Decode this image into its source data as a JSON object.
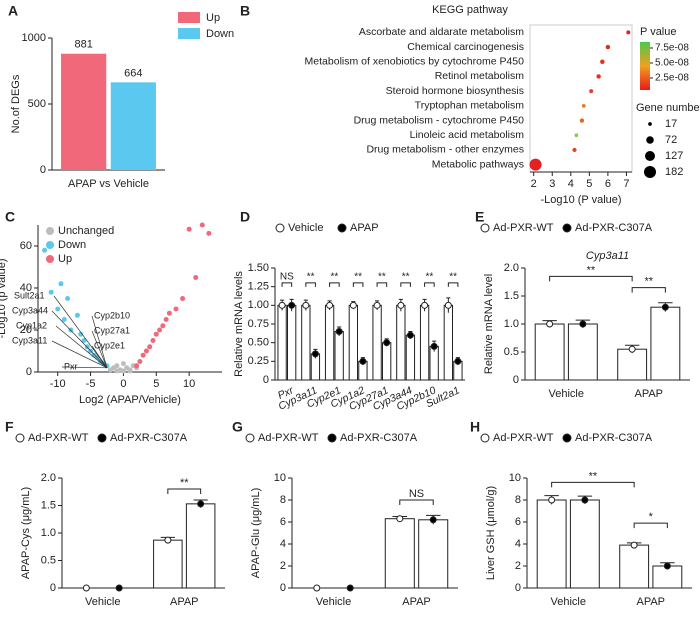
{
  "chart_data": [
    {
      "panel": "A",
      "type": "bar",
      "ylabel": "No.of DEGs",
      "categories": [
        "APAP vs Vehicle"
      ],
      "series": [
        {
          "name": "Up",
          "color": "#f0687a",
          "values": [
            881
          ]
        },
        {
          "name": "Down",
          "color": "#5bc8f0",
          "values": [
            664
          ]
        }
      ],
      "ylim": [
        0,
        1000
      ],
      "yticks": [
        0,
        500,
        1000
      ]
    },
    {
      "panel": "B",
      "type": "dot",
      "title": "KEGG pathway",
      "xlabel": "-Log10 (P value)",
      "categories": [
        "Ascorbate and aldarate metabolism",
        "Chemical carcinogenesis",
        "Metabolism of xenobiotics by cytochrome P450",
        "Retinol metabolism",
        "Steroid hormone biosynthesis",
        "Tryptophan metabolism",
        "Drug metabolism - cytochrome P450",
        "Linoleic acid metabolism",
        "Drug metabolism - other enzymes",
        "Metabolic pathways"
      ],
      "values": [
        7.1,
        6.0,
        5.7,
        5.5,
        5.1,
        4.7,
        4.6,
        4.3,
        4.2,
        2.1
      ],
      "sizes": [
        20,
        25,
        25,
        25,
        20,
        18,
        25,
        17,
        22,
        182
      ],
      "colors": [
        "#e8201a",
        "#e52a1c",
        "#e53020",
        "#e53020",
        "#e84020",
        "#ee7a20",
        "#e56a20",
        "#7ed04a",
        "#e84020",
        "#e52020"
      ],
      "xlim": [
        1.8,
        7.3
      ],
      "xticks": [
        2,
        3,
        4,
        5,
        6,
        7
      ],
      "color_legend": {
        "title": "P value",
        "lim": [
          5e-09,
          8.5e-08
        ],
        "ticks": [
          {
            "value": 7.5e-08,
            "label": "7.5e-08"
          },
          {
            "value": 5e-08,
            "label": "5.0e-08"
          },
          {
            "value": 2.5e-08,
            "label": "2.5e-08"
          }
        ]
      },
      "size_legend": {
        "title": "Gene number",
        "values": [
          17,
          72,
          127,
          182
        ]
      }
    },
    {
      "panel": "C",
      "type": "scatter",
      "xlabel": "Log2 (APAP/Vehicle)",
      "ylabel": "-Log10 (p value)",
      "series": [
        {
          "name": "Unchanged",
          "color": "#bdbdbd",
          "x": [
            -2,
            -1.5,
            -1,
            -0.5,
            0,
            0.5,
            1,
            1.5,
            2,
            -1,
            1,
            0
          ],
          "y": [
            1,
            2,
            3,
            1,
            0.5,
            2,
            1,
            3,
            2,
            0.5,
            0.5,
            4
          ]
        },
        {
          "name": "Down",
          "color": "#5bc8f0",
          "x": [
            -12,
            -11,
            -10,
            -9,
            -8,
            -7,
            -6.5,
            -6,
            -5.5,
            -5,
            -4.5,
            -4,
            -3.5,
            -3,
            -2.5,
            -8.5,
            -9.5
          ],
          "y": [
            58,
            38,
            30,
            25,
            20,
            27,
            18,
            15,
            12,
            10,
            8,
            7,
            5,
            4,
            3,
            35,
            42
          ]
        },
        {
          "name": "Up",
          "color": "#f0687a",
          "x": [
            2,
            2.5,
            3,
            3.5,
            4,
            4.5,
            5,
            5.5,
            6,
            6.5,
            7,
            8,
            9,
            10,
            12,
            13,
            11
          ],
          "y": [
            3,
            5,
            8,
            10,
            12,
            15,
            18,
            20,
            22,
            25,
            28,
            30,
            35,
            68,
            70,
            66,
            45
          ]
        }
      ],
      "annotations": [
        "Sult2a1",
        "Cyp3a44",
        "Cyp1a2",
        "Cyp3a11",
        "Cyp2b10",
        "Cyp27a1",
        "Cyp2e1",
        "Pxr"
      ],
      "xlim": [
        -13,
        15
      ],
      "xticks": [
        -10,
        -5,
        0,
        5,
        10
      ],
      "ylim": [
        0,
        70
      ],
      "yticks": [
        0,
        20,
        40,
        60
      ]
    },
    {
      "panel": "D",
      "type": "grouped-bar",
      "ylabel": "Relative mRNA levels",
      "categories": [
        "Pxr",
        "Cyp3a11",
        "Cyp2e1",
        "Cyp1a2",
        "Cyp27a1",
        "Cyp3a44",
        "Cyp2b10",
        "Sult2a1"
      ],
      "series": [
        {
          "name": "Vehicle",
          "color": "#ffffff",
          "values": [
            1.0,
            1.0,
            1.0,
            1.0,
            1.0,
            1.0,
            1.0,
            1.0
          ],
          "errors": [
            0.07,
            0.07,
            0.06,
            0.05,
            0.06,
            0.08,
            0.08,
            0.1
          ]
        },
        {
          "name": "APAP",
          "color": "#000000",
          "values": [
            1.0,
            0.35,
            0.65,
            0.25,
            0.5,
            0.6,
            0.45,
            0.25
          ],
          "errors": [
            0.08,
            0.06,
            0.06,
            0.05,
            0.05,
            0.05,
            0.07,
            0.05
          ]
        }
      ],
      "ylim": [
        0,
        1.5
      ],
      "yticks": [
        0,
        0.25,
        {
          "value": 0.5,
          "label": "0.50"
        },
        0.75,
        {
          "value": 1,
          "label": "1.00"
        },
        1.25,
        {
          "value": 1.5,
          "label": "1.50"
        }
      ],
      "annotations": [
        "NS",
        "**",
        "**",
        "**",
        "**",
        "**",
        "**",
        "**"
      ]
    },
    {
      "panel": "E",
      "type": "grouped-bar",
      "subtitle": "Cyp3a11",
      "ylabel": "Relative mRNA level",
      "categories": [
        "Vehicle",
        "APAP"
      ],
      "series": [
        {
          "name": "Ad-PXR-WT",
          "color": "#ffffff",
          "values": [
            1.0,
            0.55
          ],
          "errors": [
            0.06,
            0.07
          ]
        },
        {
          "name": "Ad-PXR-C307A",
          "color": "#000000",
          "values": [
            1.0,
            1.3
          ],
          "errors": [
            0.07,
            0.08
          ]
        }
      ],
      "ylim": [
        0,
        2
      ],
      "yticks": [
        0,
        0.5,
        {
          "value": 1,
          "label": "1.0"
        },
        1.5,
        {
          "value": 2,
          "label": "2.0"
        }
      ],
      "annotations": [
        "**",
        "**"
      ]
    },
    {
      "panel": "F",
      "type": "grouped-bar",
      "ylabel": "APAP-Cys (μg/mL)",
      "categories": [
        "Vehicle",
        "APAP"
      ],
      "series": [
        {
          "name": "Ad-PXR-WT",
          "color": "#ffffff",
          "values": [
            0,
            0.87
          ],
          "errors": [
            0,
            0.05
          ]
        },
        {
          "name": "Ad-PXR-C307A",
          "color": "#000000",
          "values": [
            0,
            1.53
          ],
          "errors": [
            0,
            0.07
          ]
        }
      ],
      "ylim": [
        0,
        2
      ],
      "yticks": [
        0,
        0.5,
        {
          "value": 1,
          "label": "1.0"
        },
        1.5,
        {
          "value": 2,
          "label": "2.0"
        }
      ],
      "annotations": [
        "**"
      ]
    },
    {
      "panel": "G",
      "type": "grouped-bar",
      "ylabel": "APAP-Glu (μg/mL)",
      "categories": [
        "Vehicle",
        "APAP"
      ],
      "series": [
        {
          "name": "Ad-PXR-WT",
          "color": "#ffffff",
          "values": [
            0,
            6.3
          ],
          "errors": [
            0,
            0.2
          ]
        },
        {
          "name": "Ad-PXR-C307A",
          "color": "#000000",
          "values": [
            0,
            6.2
          ],
          "errors": [
            0,
            0.4
          ]
        }
      ],
      "ylim": [
        0,
        10
      ],
      "yticks": [
        0,
        2,
        4,
        6,
        8,
        10
      ],
      "annotations": [
        "NS"
      ]
    },
    {
      "panel": "H",
      "type": "grouped-bar",
      "ylabel": "Liver GSH (μmol/g)",
      "categories": [
        "Vehicle",
        "APAP"
      ],
      "series": [
        {
          "name": "Ad-PXR-WT",
          "color": "#ffffff",
          "values": [
            8.0,
            3.9
          ],
          "errors": [
            0.4,
            0.2
          ]
        },
        {
          "name": "Ad-PXR-C307A",
          "color": "#000000",
          "values": [
            8.0,
            2.0
          ],
          "errors": [
            0.35,
            0.3
          ]
        }
      ],
      "ylim": [
        0,
        10
      ],
      "yticks": [
        0,
        2,
        4,
        6,
        8,
        10
      ],
      "annotations": [
        "**",
        "*"
      ]
    }
  ]
}
